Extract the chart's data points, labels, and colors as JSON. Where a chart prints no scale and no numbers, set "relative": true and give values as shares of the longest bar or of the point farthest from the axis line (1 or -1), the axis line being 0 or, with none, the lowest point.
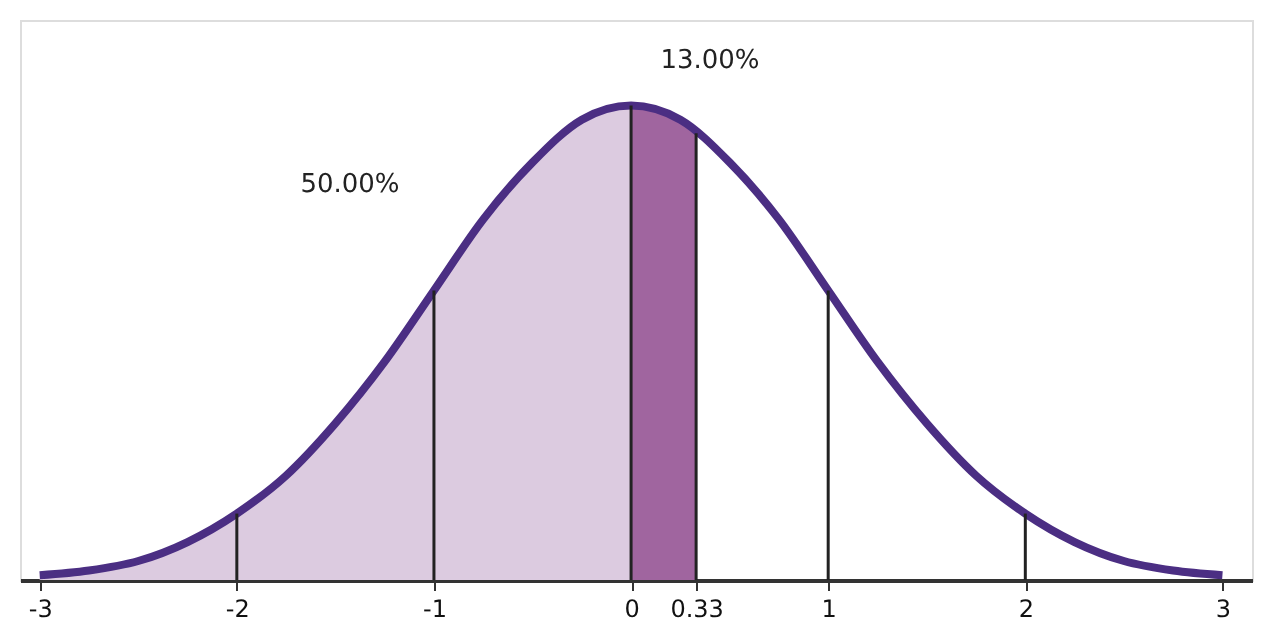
{
  "chart_data": {
    "type": "area",
    "relative": true,
    "series": [
      {
        "color": "#dccbe0",
        "x": [
          -3,
          -2.75,
          -2.5,
          -2.25,
          -2,
          -1.75,
          -1.5,
          -1.25,
          -1,
          -0.75,
          -0.5,
          -0.25,
          0
        ],
        "values": [
          0.01,
          0.02,
          0.04,
          0.08,
          0.14,
          0.22,
          0.33,
          0.46,
          0.61,
          0.76,
          0.88,
          0.97,
          1
        ]
      },
      {
        "type": "area",
        "color": "#a0659f",
        "x": [
          0,
          0.11,
          0.22,
          0.33
        ],
        "values": [
          1,
          0.99,
          0.98,
          0.95
        ]
      },
      {
        "type": "line",
        "color": "#4b2e83",
        "x": [
          -3,
          -2.75,
          -2.5,
          -2.25,
          -2,
          -1.75,
          -1.5,
          -1.25,
          -1,
          -0.75,
          -0.5,
          -0.25,
          0,
          0.25,
          0.5,
          0.75,
          1,
          1.25,
          1.5,
          1.75,
          2,
          2.25,
          2.5,
          2.75,
          3
        ],
        "values": [
          0.01,
          0.02,
          0.04,
          0.08,
          0.14,
          0.22,
          0.33,
          0.46,
          0.61,
          0.76,
          0.88,
          0.97,
          1,
          0.97,
          0.88,
          0.76,
          0.61,
          0.46,
          0.33,
          0.22,
          0.14,
          0.08,
          0.04,
          0.02,
          0.01
        ]
      }
    ],
    "xlim": [
      -3.1,
      3.15
    ],
    "xticks": [
      -3,
      -2,
      -1,
      0,
      0.33,
      1,
      2,
      3
    ],
    "ref_lines": [
      {
        "axis": "x",
        "value": -2,
        "color": "#222222"
      },
      {
        "axis": "x",
        "value": -1,
        "color": "#222222"
      },
      {
        "axis": "x",
        "value": 0,
        "color": "#222222"
      },
      {
        "axis": "x",
        "value": 0.33,
        "color": "#222222"
      },
      {
        "axis": "x",
        "value": 1,
        "color": "#222222"
      },
      {
        "axis": "x",
        "value": 2,
        "color": "#222222"
      }
    ],
    "annotations": [
      "50.00%",
      "13.00%"
    ],
    "grid": false
  }
}
